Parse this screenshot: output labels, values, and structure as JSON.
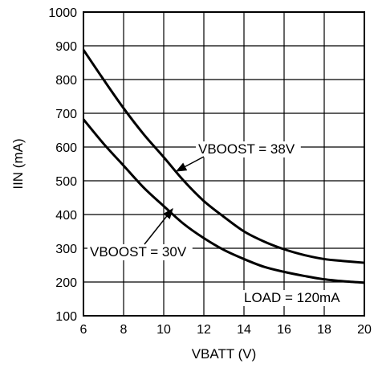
{
  "chart_data": {
    "type": "line",
    "xlabel": "VBATT (V)",
    "ylabel": "IIN (mA)",
    "xlim": [
      6,
      20
    ],
    "ylim": [
      100,
      1000
    ],
    "xticks": [
      6,
      8,
      10,
      12,
      14,
      16,
      18,
      20
    ],
    "yticks": [
      100,
      200,
      300,
      400,
      500,
      600,
      700,
      800,
      900,
      1000
    ],
    "grid": true,
    "series": [
      {
        "name": "VBOOST = 38V",
        "x": [
          6,
          7,
          8,
          9,
          10,
          11,
          12,
          13,
          14,
          15,
          16,
          17,
          18,
          19,
          20
        ],
        "y": [
          888,
          800,
          715,
          638,
          570,
          500,
          440,
          393,
          350,
          320,
          297,
          280,
          268,
          262,
          257
        ]
      },
      {
        "name": "VBOOST = 30V",
        "x": [
          6,
          7,
          8,
          9,
          10,
          11,
          12,
          13,
          14,
          15,
          16,
          17,
          18,
          19,
          20
        ],
        "y": [
          682,
          610,
          545,
          480,
          425,
          372,
          330,
          295,
          268,
          245,
          230,
          218,
          208,
          202,
          198
        ]
      }
    ],
    "annotations": [
      {
        "text": "VBOOST = 38V",
        "series": 0
      },
      {
        "text": "VBOOST = 30V",
        "series": 1
      },
      {
        "text": "LOAD = 120mA"
      }
    ]
  }
}
